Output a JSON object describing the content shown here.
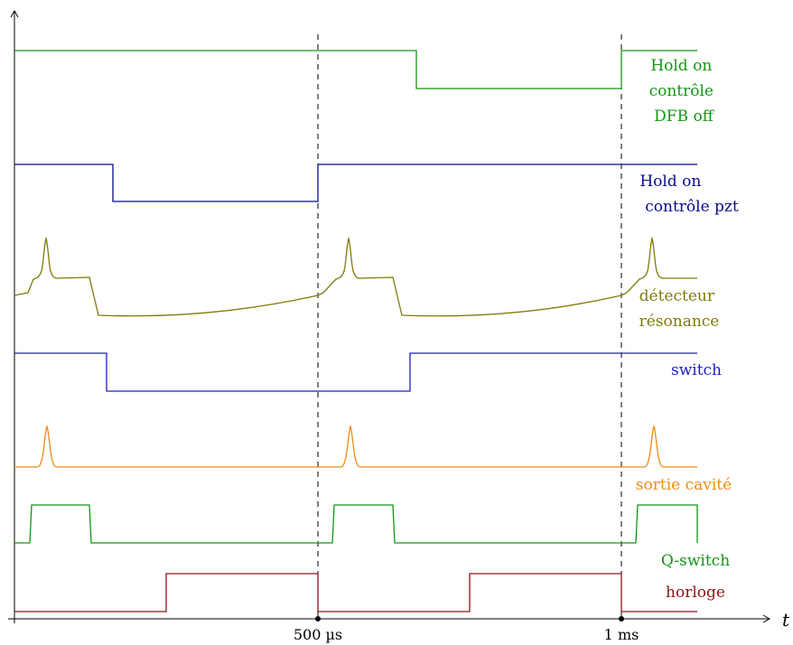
{
  "axis": {
    "x_name": "t",
    "ticks": [
      "500 µs",
      "1 ms"
    ]
  },
  "signals": [
    {
      "id": "dfb",
      "label_lines": [
        "Hold on",
        "contrôle",
        "DFB off"
      ],
      "color": "#149614"
    },
    {
      "id": "pzt",
      "label_lines": [
        "Hold on",
        "contrôle pzt"
      ],
      "color": "#0a0a8c"
    },
    {
      "id": "detecteur",
      "label_lines": [
        "détecteur",
        "résonance"
      ],
      "color": "#7f7a0a"
    },
    {
      "id": "switch",
      "label_lines": [
        "switch"
      ],
      "color": "#1e1ec8"
    },
    {
      "id": "sortie",
      "label_lines": [
        "sortie cavité"
      ],
      "color": "#f08c14"
    },
    {
      "id": "qswitch",
      "label_lines": [
        "Q-switch"
      ],
      "color": "#149614"
    },
    {
      "id": "horloge",
      "label_lines": [
        "horloge"
      ],
      "color": "#8c1414"
    }
  ]
}
